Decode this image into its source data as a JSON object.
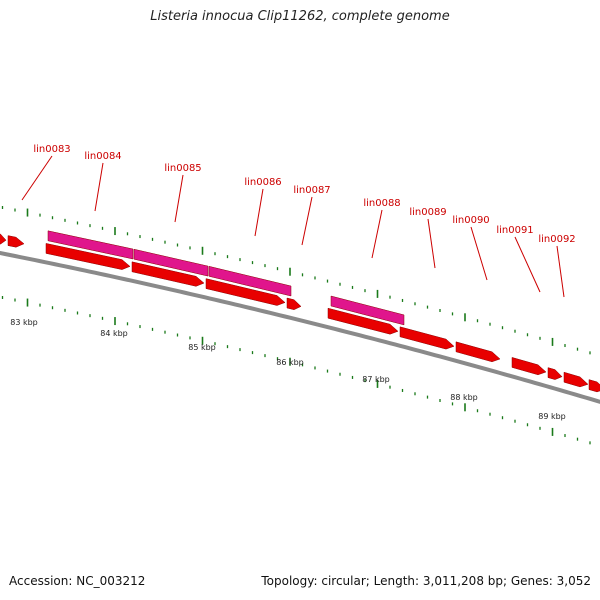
{
  "title": "Listeria innocua Clip11262, complete genome",
  "accession_text": "Accession: NC_003212",
  "summary_text": "Topology: circular; Length: 3,011,208 bp; Genes: 3,052",
  "colors": {
    "backbone": "#8a8a8a",
    "cds": "#e80000",
    "gene_feature": "#e0158c",
    "label": "#cc0000",
    "tick": "#1a7a1a"
  },
  "gene_labels": [
    "lin0083",
    "lin0084",
    "lin0085",
    "lin0086",
    "lin0087",
    "lin0088",
    "lin0089",
    "lin0090",
    "lin0091",
    "lin0092"
  ],
  "kbp_labels": [
    "83 kbp",
    "84 kbp",
    "85 kbp",
    "86 kbp",
    "87 kbp",
    "88 kbp",
    "89 kbp"
  ]
}
